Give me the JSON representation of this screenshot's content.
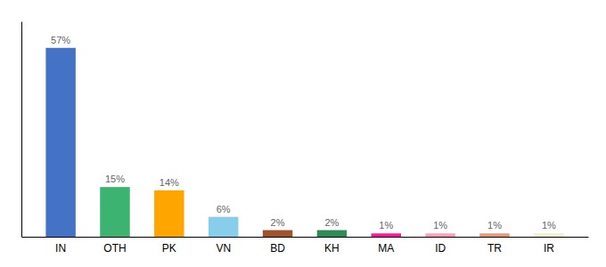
{
  "chart_data": {
    "type": "bar",
    "categories": [
      "IN",
      "OTH",
      "PK",
      "VN",
      "BD",
      "KH",
      "MA",
      "ID",
      "TR",
      "IR"
    ],
    "values": [
      57,
      15,
      14,
      6,
      2,
      2,
      1,
      1,
      1,
      1
    ],
    "value_labels": [
      "57%",
      "15%",
      "14%",
      "6%",
      "2%",
      "2%",
      "1%",
      "1%",
      "1%",
      "1%"
    ],
    "data_labels": true,
    "colors": [
      "#4472C4",
      "#3CB371",
      "#FFA500",
      "#87CEEB",
      "#A0522D",
      "#2E8B57",
      "#FF1493",
      "#FF9EBC",
      "#E8967A",
      "#F0EDD0"
    ],
    "ylim": [
      0,
      65
    ],
    "tick_labels": "x"
  }
}
